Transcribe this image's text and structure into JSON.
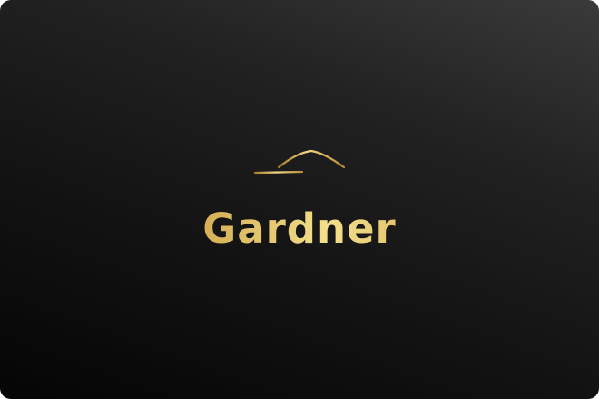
{
  "brand": {
    "name": "Gardner"
  },
  "logo": {
    "icon": "house-roof-icon"
  },
  "colors": {
    "background_light": "#3a3a3a",
    "background_dark": "#050505",
    "gold_dark": "#9a6f22",
    "gold_light": "#f3e08c"
  }
}
